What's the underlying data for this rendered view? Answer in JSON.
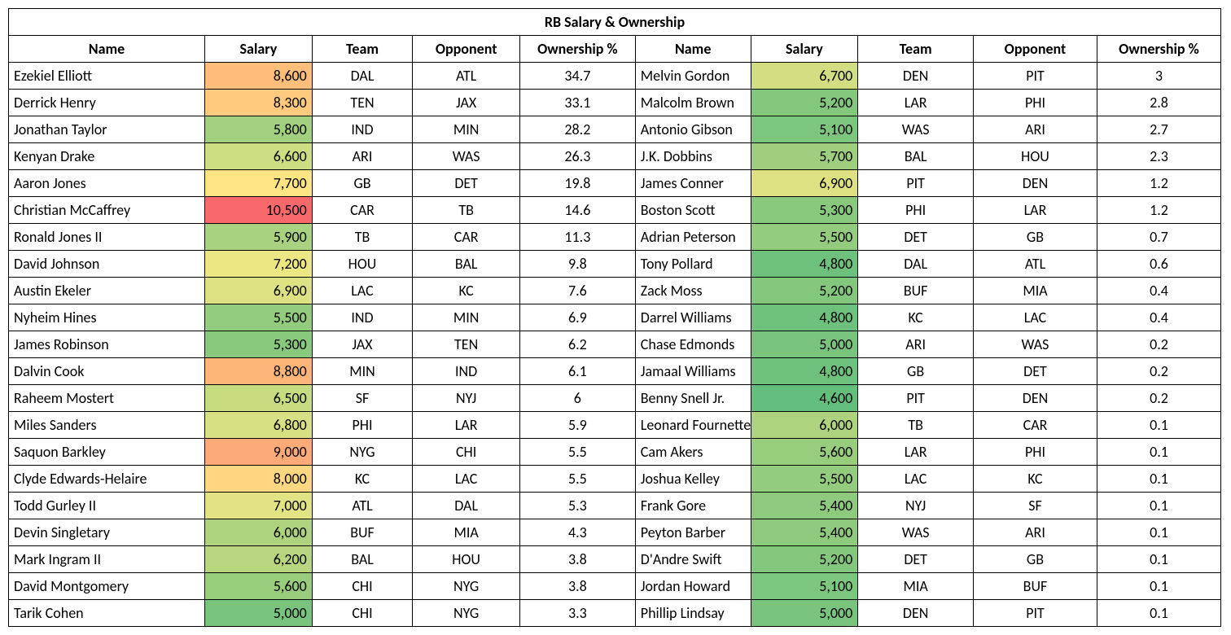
{
  "title": "RB Salary & Ownership",
  "columns": [
    "Name",
    "Salary",
    "Team",
    "Opponent",
    "Ownership %",
    "Name",
    "Salary",
    "Team",
    "Opponent",
    "Ownership %"
  ],
  "salary_color_scale": {
    "min_value": 4600,
    "max_value": 10500,
    "min_color": "#63be7b",
    "mid_color": "#ffeb84",
    "max_color": "#f8696b"
  },
  "rows": [
    {
      "n1": "Ezekiel Elliott",
      "s1": 8600,
      "t1": "DAL",
      "o1": "ATL",
      "w1": 34.7,
      "n2": "Melvin Gordon",
      "s2": 6700,
      "t2": "DEN",
      "o2": "PIT",
      "w2": 3
    },
    {
      "n1": "Derrick Henry",
      "s1": 8300,
      "t1": "TEN",
      "o1": "JAX",
      "w1": 33.1,
      "n2": "Malcolm Brown",
      "s2": 5200,
      "t2": "LAR",
      "o2": "PHI",
      "w2": 2.8
    },
    {
      "n1": "Jonathan Taylor",
      "s1": 5800,
      "t1": "IND",
      "o1": "MIN",
      "w1": 28.2,
      "n2": "Antonio Gibson",
      "s2": 5100,
      "t2": "WAS",
      "o2": "ARI",
      "w2": 2.7
    },
    {
      "n1": "Kenyan Drake",
      "s1": 6600,
      "t1": "ARI",
      "o1": "WAS",
      "w1": 26.3,
      "n2": "J.K. Dobbins",
      "s2": 5700,
      "t2": "BAL",
      "o2": "HOU",
      "w2": 2.3
    },
    {
      "n1": "Aaron Jones",
      "s1": 7700,
      "t1": "GB",
      "o1": "DET",
      "w1": 19.8,
      "n2": "James Conner",
      "s2": 6900,
      "t2": "PIT",
      "o2": "DEN",
      "w2": 1.2
    },
    {
      "n1": "Christian McCaffrey",
      "s1": 10500,
      "t1": "CAR",
      "o1": "TB",
      "w1": 14.6,
      "n2": "Boston Scott",
      "s2": 5300,
      "t2": "PHI",
      "o2": "LAR",
      "w2": 1.2
    },
    {
      "n1": "Ronald Jones II",
      "s1": 5900,
      "t1": "TB",
      "o1": "CAR",
      "w1": 11.3,
      "n2": "Adrian Peterson",
      "s2": 5500,
      "t2": "DET",
      "o2": "GB",
      "w2": 0.7
    },
    {
      "n1": "David Johnson",
      "s1": 7200,
      "t1": "HOU",
      "o1": "BAL",
      "w1": 9.8,
      "n2": "Tony Pollard",
      "s2": 4800,
      "t2": "DAL",
      "o2": "ATL",
      "w2": 0.6
    },
    {
      "n1": "Austin Ekeler",
      "s1": 6900,
      "t1": "LAC",
      "o1": "KC",
      "w1": 7.6,
      "n2": "Zack Moss",
      "s2": 5200,
      "t2": "BUF",
      "o2": "MIA",
      "w2": 0.4
    },
    {
      "n1": "Nyheim Hines",
      "s1": 5500,
      "t1": "IND",
      "o1": "MIN",
      "w1": 6.9,
      "n2": "Darrel Williams",
      "s2": 4800,
      "t2": "KC",
      "o2": "LAC",
      "w2": 0.4
    },
    {
      "n1": "James Robinson",
      "s1": 5300,
      "t1": "JAX",
      "o1": "TEN",
      "w1": 6.2,
      "n2": "Chase Edmonds",
      "s2": 5000,
      "t2": "ARI",
      "o2": "WAS",
      "w2": 0.2
    },
    {
      "n1": "Dalvin Cook",
      "s1": 8800,
      "t1": "MIN",
      "o1": "IND",
      "w1": 6.1,
      "n2": "Jamaal Williams",
      "s2": 4800,
      "t2": "GB",
      "o2": "DET",
      "w2": 0.2
    },
    {
      "n1": "Raheem Mostert",
      "s1": 6500,
      "t1": "SF",
      "o1": "NYJ",
      "w1": 6,
      "n2": "Benny Snell Jr.",
      "s2": 4600,
      "t2": "PIT",
      "o2": "DEN",
      "w2": 0.2
    },
    {
      "n1": "Miles Sanders",
      "s1": 6800,
      "t1": "PHI",
      "o1": "LAR",
      "w1": 5.9,
      "n2": "Leonard Fournette",
      "s2": 6000,
      "t2": "TB",
      "o2": "CAR",
      "w2": 0.1
    },
    {
      "n1": "Saquon Barkley",
      "s1": 9000,
      "t1": "NYG",
      "o1": "CHI",
      "w1": 5.5,
      "n2": "Cam Akers",
      "s2": 5600,
      "t2": "LAR",
      "o2": "PHI",
      "w2": 0.1
    },
    {
      "n1": "Clyde Edwards-Helaire",
      "s1": 8000,
      "t1": "KC",
      "o1": "LAC",
      "w1": 5.5,
      "n2": "Joshua Kelley",
      "s2": 5500,
      "t2": "LAC",
      "o2": "KC",
      "w2": 0.1
    },
    {
      "n1": "Todd Gurley II",
      "s1": 7000,
      "t1": "ATL",
      "o1": "DAL",
      "w1": 5.3,
      "n2": "Frank Gore",
      "s2": 5400,
      "t2": "NYJ",
      "o2": "SF",
      "w2": 0.1
    },
    {
      "n1": "Devin Singletary",
      "s1": 6000,
      "t1": "BUF",
      "o1": "MIA",
      "w1": 4.3,
      "n2": "Peyton Barber",
      "s2": 5400,
      "t2": "WAS",
      "o2": "ARI",
      "w2": 0.1
    },
    {
      "n1": "Mark Ingram II",
      "s1": 6200,
      "t1": "BAL",
      "o1": "HOU",
      "w1": 3.8,
      "n2": "D'Andre Swift",
      "s2": 5200,
      "t2": "DET",
      "o2": "GB",
      "w2": 0.1
    },
    {
      "n1": "David Montgomery",
      "s1": 5600,
      "t1": "CHI",
      "o1": "NYG",
      "w1": 3.8,
      "n2": "Jordan Howard",
      "s2": 5100,
      "t2": "MIA",
      "o2": "BUF",
      "w2": 0.1
    },
    {
      "n1": "Tarik Cohen",
      "s1": 5000,
      "t1": "CHI",
      "o1": "NYG",
      "w1": 3.3,
      "n2": "Phillip Lindsay",
      "s2": 5000,
      "t2": "DEN",
      "o2": "PIT",
      "w2": 0.1
    }
  ]
}
